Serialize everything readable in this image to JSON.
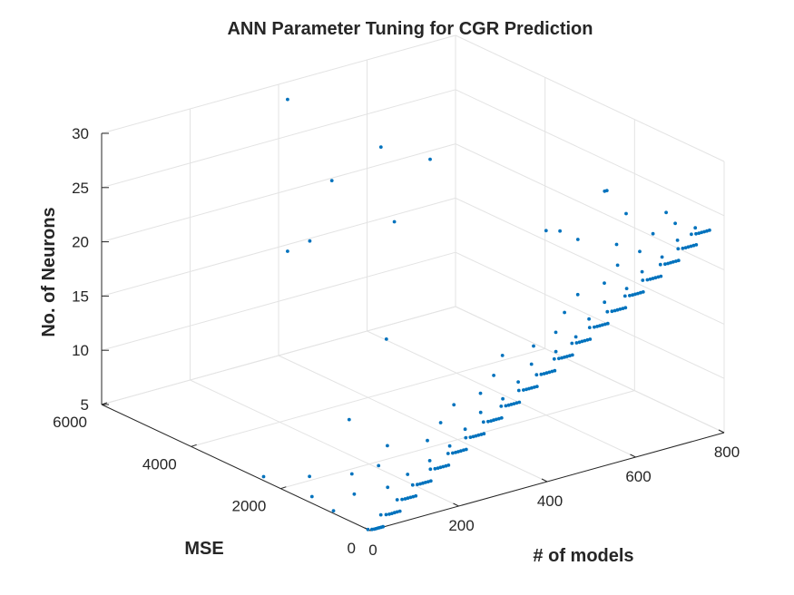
{
  "chart_data": {
    "type": "scatter",
    "title": "ANN Parameter Tuning for CGR Prediction",
    "xlabel": "# of models",
    "ylabel": "MSE",
    "zlabel": "No. of Neurons",
    "xlim": [
      0,
      800
    ],
    "ylim": [
      0,
      6000
    ],
    "zlim": [
      5,
      30
    ],
    "xticks": [
      "0",
      "200",
      "400",
      "600",
      "800"
    ],
    "yticks": [
      "0",
      "2000",
      "4000",
      "6000"
    ],
    "zticks": [
      "5",
      "10",
      "15",
      "20",
      "25",
      "30"
    ],
    "grid": true,
    "marker_color": "#0072BD",
    "series": [
      {
        "points": [
          [
            0,
            50,
            5
          ],
          [
            6,
            20,
            5
          ],
          [
            10,
            10,
            5
          ],
          [
            14,
            10,
            5
          ],
          [
            18,
            10,
            5
          ],
          [
            22,
            10,
            5
          ],
          [
            26,
            10,
            5
          ],
          [
            30,
            10,
            5
          ],
          [
            12,
            2500,
            5
          ],
          [
            20,
            1500,
            5
          ],
          [
            8,
            900,
            5
          ],
          [
            30,
            60,
            6
          ],
          [
            38,
            20,
            6
          ],
          [
            44,
            10,
            6
          ],
          [
            50,
            10,
            6
          ],
          [
            56,
            10,
            6
          ],
          [
            62,
            10,
            6
          ],
          [
            68,
            10,
            6
          ],
          [
            45,
            1800,
            6
          ],
          [
            55,
            900,
            6
          ],
          [
            66,
            50,
            7
          ],
          [
            74,
            20,
            7
          ],
          [
            80,
            10,
            7
          ],
          [
            86,
            10,
            7
          ],
          [
            92,
            10,
            7
          ],
          [
            98,
            10,
            7
          ],
          [
            104,
            10,
            7
          ],
          [
            80,
            1200,
            7
          ],
          [
            90,
            500,
            7
          ],
          [
            100,
            40,
            8
          ],
          [
            108,
            15,
            8
          ],
          [
            114,
            10,
            8
          ],
          [
            120,
            10,
            8
          ],
          [
            126,
            10,
            8
          ],
          [
            132,
            10,
            8
          ],
          [
            138,
            10,
            8
          ],
          [
            110,
            900,
            8
          ],
          [
            125,
            400,
            8
          ],
          [
            140,
            40,
            9
          ],
          [
            148,
            15,
            9
          ],
          [
            154,
            10,
            9
          ],
          [
            160,
            10,
            9
          ],
          [
            166,
            10,
            9
          ],
          [
            172,
            10,
            9
          ],
          [
            178,
            10,
            9
          ],
          [
            150,
            1100,
            9
          ],
          [
            165,
            300,
            9
          ],
          [
            175,
            2200,
            9
          ],
          [
            180,
            40,
            10
          ],
          [
            188,
            15,
            10
          ],
          [
            194,
            10,
            10
          ],
          [
            200,
            10,
            10
          ],
          [
            206,
            10,
            10
          ],
          [
            212,
            10,
            10
          ],
          [
            218,
            10,
            10
          ],
          [
            190,
            600,
            10
          ],
          [
            205,
            250,
            10
          ],
          [
            220,
            40,
            11
          ],
          [
            228,
            15,
            11
          ],
          [
            234,
            10,
            11
          ],
          [
            240,
            10,
            11
          ],
          [
            246,
            10,
            11
          ],
          [
            252,
            10,
            11
          ],
          [
            258,
            10,
            11
          ],
          [
            230,
            700,
            11
          ],
          [
            245,
            300,
            11
          ],
          [
            260,
            40,
            12
          ],
          [
            268,
            15,
            12
          ],
          [
            274,
            10,
            12
          ],
          [
            280,
            10,
            12
          ],
          [
            286,
            10,
            12
          ],
          [
            292,
            10,
            12
          ],
          [
            298,
            10,
            12
          ],
          [
            270,
            800,
            12
          ],
          [
            285,
            350,
            12
          ],
          [
            300,
            40,
            13
          ],
          [
            308,
            15,
            13
          ],
          [
            314,
            10,
            13
          ],
          [
            320,
            10,
            13
          ],
          [
            326,
            10,
            13
          ],
          [
            332,
            10,
            13
          ],
          [
            338,
            10,
            13
          ],
          [
            310,
            600,
            13
          ],
          [
            325,
            250,
            13
          ],
          [
            340,
            3000,
            13
          ],
          [
            340,
            40,
            14
          ],
          [
            348,
            15,
            14
          ],
          [
            354,
            10,
            14
          ],
          [
            360,
            10,
            14
          ],
          [
            366,
            10,
            14
          ],
          [
            372,
            10,
            14
          ],
          [
            378,
            10,
            14
          ],
          [
            350,
            700,
            14
          ],
          [
            365,
            300,
            14
          ],
          [
            380,
            40,
            15
          ],
          [
            388,
            15,
            15
          ],
          [
            394,
            10,
            15
          ],
          [
            400,
            10,
            15
          ],
          [
            406,
            10,
            15
          ],
          [
            412,
            10,
            15
          ],
          [
            418,
            10,
            15
          ],
          [
            390,
            900,
            15
          ],
          [
            405,
            400,
            15
          ],
          [
            400,
            5800,
            15
          ],
          [
            420,
            40,
            16
          ],
          [
            428,
            15,
            16
          ],
          [
            434,
            10,
            16
          ],
          [
            440,
            10,
            16
          ],
          [
            446,
            10,
            16
          ],
          [
            452,
            10,
            16
          ],
          [
            458,
            10,
            16
          ],
          [
            430,
            600,
            16
          ],
          [
            445,
            250,
            16
          ],
          [
            430,
            5600,
            16
          ],
          [
            460,
            40,
            17
          ],
          [
            468,
            15,
            17
          ],
          [
            474,
            10,
            17
          ],
          [
            480,
            10,
            17
          ],
          [
            486,
            10,
            17
          ],
          [
            492,
            10,
            17
          ],
          [
            498,
            10,
            17
          ],
          [
            470,
            500,
            17
          ],
          [
            485,
            200,
            17
          ],
          [
            500,
            40,
            18
          ],
          [
            508,
            15,
            18
          ],
          [
            514,
            10,
            18
          ],
          [
            520,
            10,
            18
          ],
          [
            526,
            10,
            18
          ],
          [
            532,
            10,
            18
          ],
          [
            538,
            10,
            18
          ],
          [
            510,
            700,
            18
          ],
          [
            525,
            300,
            18
          ],
          [
            540,
            40,
            19
          ],
          [
            548,
            15,
            19
          ],
          [
            554,
            10,
            19
          ],
          [
            560,
            10,
            19
          ],
          [
            566,
            10,
            19
          ],
          [
            572,
            10,
            19
          ],
          [
            578,
            10,
            19
          ],
          [
            550,
            800,
            19
          ],
          [
            565,
            350,
            19
          ],
          [
            510,
            4500,
            19
          ],
          [
            580,
            40,
            20
          ],
          [
            588,
            15,
            20
          ],
          [
            594,
            10,
            20
          ],
          [
            600,
            10,
            20
          ],
          [
            606,
            10,
            20
          ],
          [
            612,
            10,
            20
          ],
          [
            618,
            10,
            20
          ],
          [
            590,
            600,
            20
          ],
          [
            605,
            250,
            20
          ],
          [
            620,
            40,
            21
          ],
          [
            628,
            15,
            21
          ],
          [
            634,
            10,
            21
          ],
          [
            640,
            10,
            21
          ],
          [
            646,
            10,
            21
          ],
          [
            652,
            10,
            21
          ],
          [
            658,
            10,
            21
          ],
          [
            630,
            700,
            21
          ],
          [
            645,
            300,
            21
          ],
          [
            480,
            5600,
            21
          ],
          [
            660,
            40,
            22
          ],
          [
            668,
            15,
            22
          ],
          [
            674,
            10,
            22
          ],
          [
            680,
            10,
            22
          ],
          [
            686,
            10,
            22
          ],
          [
            692,
            10,
            22
          ],
          [
            698,
            10,
            22
          ],
          [
            670,
            600,
            22
          ],
          [
            685,
            250,
            22
          ],
          [
            600,
            2000,
            22
          ],
          [
            700,
            40,
            23
          ],
          [
            708,
            15,
            23
          ],
          [
            714,
            10,
            23
          ],
          [
            720,
            10,
            23
          ],
          [
            726,
            10,
            23
          ],
          [
            732,
            10,
            23
          ],
          [
            738,
            10,
            23
          ],
          [
            710,
            700,
            23
          ],
          [
            725,
            300,
            23
          ],
          [
            730,
            40,
            24
          ],
          [
            738,
            15,
            24
          ],
          [
            744,
            10,
            24
          ],
          [
            750,
            10,
            24
          ],
          [
            756,
            10,
            24
          ],
          [
            762,
            10,
            24
          ],
          [
            768,
            10,
            24
          ],
          [
            740,
            500,
            24
          ],
          [
            755,
            200,
            24
          ],
          [
            760,
            900,
            24
          ],
          [
            700,
            1200,
            24
          ],
          [
            520,
            500,
            25
          ],
          [
            520,
            900,
            25
          ],
          [
            560,
            30,
            25
          ],
          [
            520,
            4900,
            25
          ],
          [
            540,
            100,
            30
          ],
          [
            545,
            100,
            30
          ],
          [
            400,
            5800,
            29
          ],
          [
            520,
            3800,
            26
          ]
        ]
      }
    ]
  }
}
